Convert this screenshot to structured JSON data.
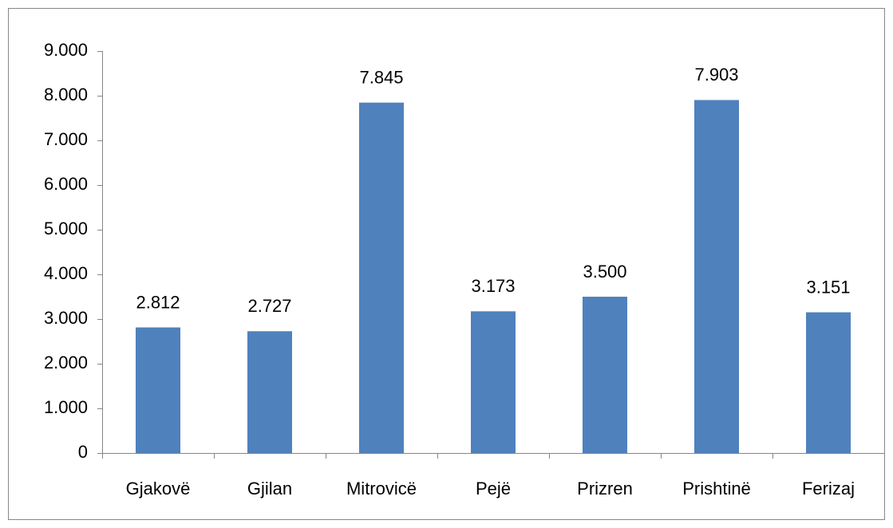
{
  "chart_data": {
    "type": "bar",
    "categories": [
      "Gjakovë",
      "Gjilan",
      "Mitrovicë",
      "Pejë",
      "Prizren",
      "Prishtinë",
      "Ferizaj"
    ],
    "values": [
      2812,
      2727,
      7845,
      3173,
      3500,
      7903,
      3151
    ],
    "value_labels": [
      "2.812",
      "2.727",
      "7.845",
      "3.173",
      "3.500",
      "7.903",
      "3.151"
    ],
    "color": "#4f81bd",
    "ylim": [
      0,
      9000
    ],
    "yticks": [
      0,
      {
        "value": 1000,
        "label": "1.000"
      },
      {
        "value": 2000,
        "label": "2.000"
      },
      {
        "value": 3000,
        "label": "3.000"
      },
      {
        "value": 4000,
        "label": "4.000"
      },
      {
        "value": 5000,
        "label": "5.000"
      },
      {
        "value": 6000,
        "label": "6.000"
      },
      {
        "value": 7000,
        "label": "7.000"
      },
      {
        "value": 8000,
        "label": "8.000"
      },
      {
        "value": 9000,
        "label": "9.000"
      }
    ],
    "grid": false
  }
}
